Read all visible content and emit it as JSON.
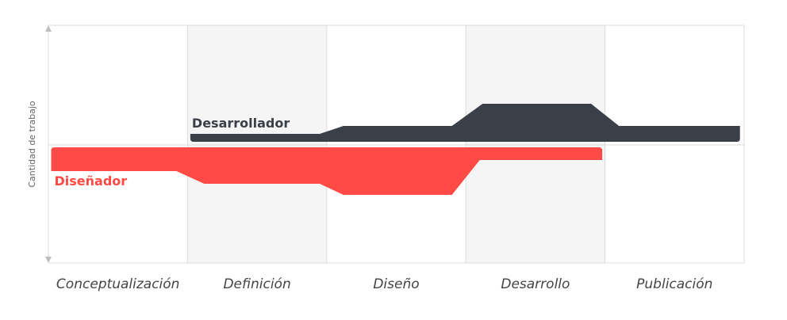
{
  "chart_data": {
    "type": "area",
    "ylabel": "Cantidad de trabajo",
    "categories": [
      "Conceptualización",
      "Definición",
      "Diseño",
      "Desarrollo",
      "Publicación"
    ],
    "phase_shading": [
      "none",
      "gray",
      "none",
      "gray",
      "none"
    ],
    "x_range": [
      0,
      5
    ],
    "y_range": [
      -10,
      10
    ],
    "series": [
      {
        "name": "Desarrollador",
        "color": "#3a3f48",
        "direction": "up",
        "points": [
          {
            "x": 1.02,
            "y": 1.0
          },
          {
            "x": 1.95,
            "y": 1.0
          },
          {
            "x": 2.12,
            "y": 2.0
          },
          {
            "x": 2.9,
            "y": 2.0
          },
          {
            "x": 3.12,
            "y": 4.8
          },
          {
            "x": 3.9,
            "y": 4.8
          },
          {
            "x": 4.1,
            "y": 2.0
          },
          {
            "x": 4.97,
            "y": 2.0
          }
        ]
      },
      {
        "name": "Diseñador",
        "color": "#ff4a45",
        "direction": "down",
        "points": [
          {
            "x": 0.02,
            "y": 3.0
          },
          {
            "x": 0.92,
            "y": 3.0
          },
          {
            "x": 1.12,
            "y": 4.6
          },
          {
            "x": 1.95,
            "y": 4.6
          },
          {
            "x": 2.12,
            "y": 6.0
          },
          {
            "x": 2.9,
            "y": 6.0
          },
          {
            "x": 3.1,
            "y": 1.6
          },
          {
            "x": 3.98,
            "y": 1.6
          }
        ]
      }
    ],
    "colors": {
      "axis": "#dcdcdc",
      "shade": "#f5f5f5",
      "text": "#444444"
    }
  }
}
